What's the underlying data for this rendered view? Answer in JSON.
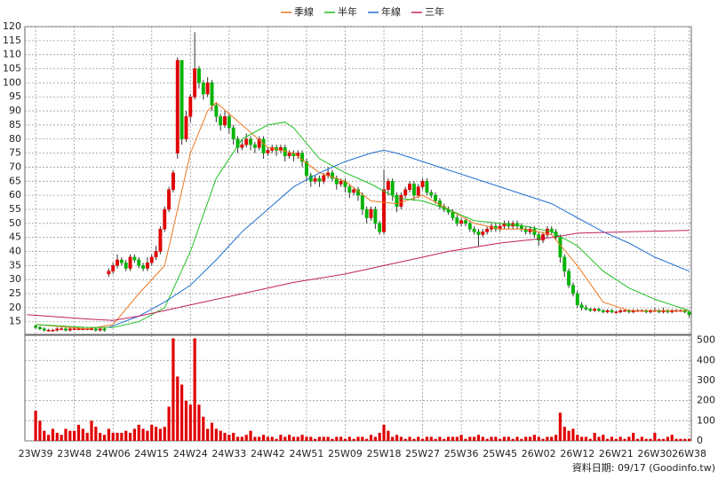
{
  "chart_data": {
    "type": "candlestick",
    "xlim": [
      -2.5,
      152.5
    ],
    "xticks": [
      {
        "value": 0,
        "label": "23W39"
      },
      {
        "value": 9,
        "label": "23W48"
      },
      {
        "value": 18,
        "label": "24W06"
      },
      {
        "value": 27,
        "label": "24W15"
      },
      {
        "value": 36,
        "label": "24W24"
      },
      {
        "value": 45,
        "label": "24W33"
      },
      {
        "value": 54,
        "label": "24W42"
      },
      {
        "value": 63,
        "label": "24W51"
      },
      {
        "value": 72,
        "label": "25W09"
      },
      {
        "value": 81,
        "label": "25W18"
      },
      {
        "value": 90,
        "label": "25W27"
      },
      {
        "value": 99,
        "label": "25W36"
      },
      {
        "value": 108,
        "label": "25W45"
      },
      {
        "value": 117,
        "label": "26W02"
      },
      {
        "value": 126,
        "label": "26W12"
      },
      {
        "value": 135,
        "label": "26W21"
      },
      {
        "value": 144,
        "label": "26W30"
      },
      {
        "value": 152,
        "label": "26W38"
      }
    ],
    "ylim": [
      10.5,
      120
    ],
    "yticks": [
      15,
      20,
      25,
      30,
      35,
      40,
      45,
      50,
      55,
      60,
      65,
      70,
      75,
      80,
      85,
      90,
      95,
      100,
      105,
      110,
      115,
      120
    ],
    "grid": true,
    "up_color": "#e00000",
    "down_color": "#00b400",
    "candles": [
      [
        13.5,
        14,
        12.5,
        13
      ],
      [
        13,
        13.5,
        12,
        12.5
      ],
      [
        12.5,
        13,
        11.5,
        12
      ],
      [
        12,
        12.5,
        11.5,
        12
      ],
      [
        12,
        12.5,
        11.5,
        12
      ],
      [
        12,
        13,
        11.5,
        12.5
      ],
      [
        12.5,
        13,
        12,
        12.5
      ],
      [
        12.5,
        13,
        11.5,
        12
      ],
      [
        12,
        13,
        11.5,
        12.5
      ],
      [
        12.5,
        13,
        12,
        12.5
      ],
      [
        12.5,
        13,
        12,
        12.5
      ],
      [
        12.5,
        13,
        12,
        12.5
      ],
      [
        12.5,
        13,
        12,
        12.5
      ],
      [
        12.5,
        13,
        12,
        12.5
      ],
      [
        12.5,
        13,
        11.5,
        12
      ],
      [
        12,
        13,
        11.5,
        12.5
      ],
      [
        12.5,
        13,
        11.5,
        12
      ],
      [
        32,
        34,
        31,
        33
      ],
      [
        33,
        36,
        32,
        35
      ],
      [
        35,
        39,
        34,
        37
      ],
      [
        37,
        38,
        35,
        36
      ],
      [
        36,
        37,
        33,
        34
      ],
      [
        34,
        39,
        33,
        38
      ],
      [
        38,
        39,
        36,
        37
      ],
      [
        37,
        38,
        34,
        35
      ],
      [
        35,
        36,
        33,
        34
      ],
      [
        34,
        38,
        33,
        36
      ],
      [
        36,
        39,
        35,
        38
      ],
      [
        38,
        42,
        37,
        40
      ],
      [
        40,
        49,
        39,
        48
      ],
      [
        48,
        56,
        47,
        55
      ],
      [
        55,
        63,
        54,
        62
      ],
      [
        62,
        69,
        61,
        68
      ],
      [
        75,
        109,
        73,
        108
      ],
      [
        108,
        108,
        78,
        80
      ],
      [
        80,
        90,
        79,
        88
      ],
      [
        88,
        96,
        86,
        95
      ],
      [
        95,
        118,
        94,
        105
      ],
      [
        105,
        106,
        98,
        100
      ],
      [
        100,
        101,
        94,
        96
      ],
      [
        96,
        102,
        95,
        100
      ],
      [
        100,
        101,
        90,
        92
      ],
      [
        92,
        93,
        86,
        88
      ],
      [
        88,
        89,
        83,
        85
      ],
      [
        85,
        90,
        84,
        88
      ],
      [
        88,
        89,
        82,
        84
      ],
      [
        84,
        85,
        78,
        80
      ],
      [
        80,
        81,
        75,
        77
      ],
      [
        77,
        80,
        76,
        78
      ],
      [
        78,
        82,
        77,
        80
      ],
      [
        80,
        81,
        76,
        78
      ],
      [
        78,
        79,
        75,
        77
      ],
      [
        77,
        81,
        76,
        80
      ],
      [
        80,
        81,
        73,
        75
      ],
      [
        75,
        77,
        74,
        76
      ],
      [
        76,
        78,
        75,
        77
      ],
      [
        77,
        78,
        74,
        76
      ],
      [
        76,
        78,
        75,
        77
      ],
      [
        77,
        78,
        72,
        74
      ],
      [
        74,
        76,
        73,
        75
      ],
      [
        75,
        76,
        72,
        74
      ],
      [
        74,
        76,
        73,
        75
      ],
      [
        75,
        76,
        70,
        72
      ],
      [
        72,
        73,
        65,
        67
      ],
      [
        67,
        68,
        63,
        65
      ],
      [
        65,
        67,
        64,
        66
      ],
      [
        66,
        67,
        63,
        65
      ],
      [
        65,
        68,
        64,
        67
      ],
      [
        67,
        70,
        66,
        68
      ],
      [
        68,
        69,
        65,
        66
      ],
      [
        66,
        67,
        62,
        64
      ],
      [
        64,
        66,
        63,
        65
      ],
      [
        65,
        66,
        61,
        63
      ],
      [
        63,
        64,
        59,
        61
      ],
      [
        61,
        63,
        60,
        62
      ],
      [
        62,
        63,
        58,
        60
      ],
      [
        60,
        61,
        53,
        55
      ],
      [
        55,
        56,
        50,
        52
      ],
      [
        52,
        56,
        51,
        55
      ],
      [
        55,
        56,
        48,
        50
      ],
      [
        50,
        51,
        46,
        47
      ],
      [
        47,
        69,
        46,
        62
      ],
      [
        62,
        66,
        60,
        65
      ],
      [
        65,
        66,
        58,
        60
      ],
      [
        60,
        61,
        54,
        56
      ],
      [
        56,
        61,
        55,
        60
      ],
      [
        60,
        63,
        59,
        62
      ],
      [
        62,
        65,
        61,
        64
      ],
      [
        64,
        65,
        58,
        60
      ],
      [
        60,
        64,
        59,
        63
      ],
      [
        63,
        66,
        62,
        65
      ],
      [
        65,
        66,
        60,
        61
      ],
      [
        61,
        62,
        59,
        60
      ],
      [
        60,
        61,
        57,
        58
      ],
      [
        58,
        59,
        55,
        56
      ],
      [
        56,
        57,
        54,
        55
      ],
      [
        55,
        56,
        53,
        54
      ],
      [
        54,
        55,
        51,
        52
      ],
      [
        52,
        53,
        49,
        50
      ],
      [
        50,
        52,
        49,
        51
      ],
      [
        51,
        52,
        49,
        50
      ],
      [
        50,
        51,
        47,
        48
      ],
      [
        48,
        49,
        46,
        47
      ],
      [
        47,
        48,
        42,
        46
      ],
      [
        46,
        48,
        45,
        47
      ],
      [
        47,
        49,
        46,
        48
      ],
      [
        48,
        50,
        47,
        49
      ],
      [
        49,
        50,
        47,
        48
      ],
      [
        48,
        50,
        47,
        49
      ],
      [
        49,
        51,
        48,
        50
      ],
      [
        50,
        51,
        48,
        49
      ],
      [
        49,
        51,
        48,
        50
      ],
      [
        50,
        51,
        48,
        49
      ],
      [
        49,
        50,
        47,
        48
      ],
      [
        48,
        49,
        46,
        47
      ],
      [
        47,
        49,
        46,
        48
      ],
      [
        48,
        49,
        45,
        46
      ],
      [
        46,
        47,
        42,
        44
      ],
      [
        44,
        47,
        43,
        46
      ],
      [
        46,
        49,
        45,
        48
      ],
      [
        48,
        49,
        46,
        47
      ],
      [
        47,
        48,
        44,
        45
      ],
      [
        45,
        46,
        36,
        38
      ],
      [
        38,
        39,
        31,
        33
      ],
      [
        33,
        34,
        27,
        28
      ],
      [
        28,
        29,
        24,
        25
      ],
      [
        25,
        26,
        20,
        21
      ],
      [
        21,
        22,
        19,
        20
      ],
      [
        20,
        21,
        19,
        19.5
      ],
      [
        19.5,
        20,
        18.5,
        19
      ],
      [
        19,
        20,
        18.5,
        19.5
      ],
      [
        19.5,
        20,
        18.5,
        19
      ],
      [
        19,
        19.5,
        18,
        18.5
      ],
      [
        18.5,
        19.5,
        18,
        19
      ],
      [
        19,
        19.5,
        18,
        18.5
      ],
      [
        18.5,
        19,
        18,
        18.5
      ],
      [
        18.5,
        19.5,
        18,
        19
      ],
      [
        19,
        19.5,
        18.5,
        19
      ],
      [
        19,
        19.5,
        18,
        18.5
      ],
      [
        18.5,
        19.5,
        18,
        19
      ],
      [
        19,
        19.5,
        18.5,
        19
      ],
      [
        19,
        19.5,
        18.5,
        19
      ],
      [
        19,
        19.5,
        18,
        18.5
      ],
      [
        18.5,
        19.5,
        18,
        19
      ],
      [
        19,
        20,
        18.5,
        19
      ],
      [
        19,
        19.5,
        18,
        18.5
      ],
      [
        18.5,
        20,
        18,
        19
      ],
      [
        19,
        19.5,
        18,
        18.5
      ],
      [
        18.5,
        19.5,
        18,
        19
      ],
      [
        19,
        19.5,
        18.5,
        19
      ],
      [
        19,
        19.5,
        18.5,
        19
      ],
      [
        19,
        19.5,
        18,
        18.5
      ],
      [
        18.5,
        19,
        16.5,
        17.5
      ]
    ],
    "series": [
      {
        "name": "季線",
        "color": "#f07820",
        "x": [
          0,
          12,
          18,
          24,
          30,
          36,
          40,
          42,
          48,
          54,
          60,
          66,
          72,
          78,
          84,
          90,
          96,
          102,
          108,
          114,
          120,
          126,
          132,
          138,
          144,
          152
        ],
        "values": [
          14,
          12.5,
          14,
          25,
          35,
          75,
          90,
          93,
          85,
          77,
          75,
          68,
          65,
          58,
          57,
          60,
          55,
          50,
          48,
          48,
          46,
          35,
          22,
          19,
          19,
          19
        ]
      },
      {
        "name": "半年",
        "color": "#20c020",
        "x": [
          0,
          12,
          18,
          24,
          30,
          36,
          42,
          48,
          54,
          58,
          60,
          66,
          72,
          78,
          84,
          90,
          96,
          102,
          108,
          114,
          120,
          126,
          132,
          138,
          144,
          152
        ],
        "values": [
          14,
          13,
          13,
          15,
          20,
          40,
          66,
          80,
          85,
          86,
          84,
          73,
          68,
          64,
          59,
          58,
          55,
          51,
          50,
          49,
          47,
          42,
          33,
          27,
          23,
          19
        ]
      },
      {
        "name": "年線",
        "color": "#2070d0",
        "x": [
          17,
          24,
          30,
          36,
          42,
          48,
          54,
          60,
          66,
          72,
          78,
          81,
          84,
          90,
          96,
          102,
          108,
          114,
          120,
          126,
          132,
          138,
          144,
          152
        ],
        "values": [
          13,
          17,
          22,
          28,
          37,
          47,
          55,
          63,
          68,
          72,
          75,
          76,
          75,
          72,
          69,
          66,
          63,
          60,
          57,
          52,
          47,
          43,
          38,
          33
        ]
      },
      {
        "name": "三年",
        "color": "#c02060",
        "x": [
          -2,
          12,
          18,
          24,
          30,
          36,
          48,
          60,
          72,
          84,
          96,
          108,
          120,
          126,
          138,
          152
        ],
        "values": [
          17.5,
          16,
          15.5,
          17,
          19,
          21,
          25,
          29,
          32,
          36,
          40,
          43,
          45,
          46.5,
          47,
          47.5
        ]
      }
    ],
    "volume": {
      "color": "#e00000",
      "ylim": [
        0,
        525
      ],
      "yticks": [
        0,
        100,
        200,
        300,
        400,
        500
      ],
      "values": [
        150,
        100,
        50,
        30,
        60,
        40,
        30,
        60,
        50,
        50,
        80,
        60,
        40,
        100,
        70,
        40,
        30,
        60,
        40,
        40,
        40,
        50,
        40,
        60,
        80,
        60,
        50,
        80,
        70,
        60,
        70,
        170,
        510,
        320,
        280,
        200,
        180,
        510,
        180,
        120,
        60,
        90,
        60,
        50,
        40,
        30,
        40,
        20,
        20,
        30,
        50,
        20,
        20,
        30,
        20,
        20,
        10,
        30,
        20,
        30,
        20,
        20,
        30,
        20,
        20,
        10,
        20,
        20,
        20,
        10,
        20,
        20,
        10,
        20,
        10,
        20,
        20,
        10,
        30,
        20,
        40,
        80,
        50,
        20,
        30,
        20,
        10,
        20,
        10,
        20,
        10,
        20,
        20,
        10,
        20,
        10,
        20,
        20,
        20,
        30,
        10,
        20,
        20,
        30,
        20,
        10,
        20,
        20,
        10,
        20,
        20,
        10,
        20,
        10,
        20,
        20,
        30,
        20,
        10,
        20,
        20,
        30,
        140,
        70,
        50,
        60,
        30,
        20,
        20,
        10,
        40,
        20,
        30,
        10,
        20,
        10,
        20,
        10,
        20,
        40,
        10,
        20,
        10,
        10,
        40,
        10,
        10,
        20,
        30,
        10,
        10,
        10,
        10
      ]
    },
    "footer": "資料日期: 09/17 (Goodinfo.tw)"
  }
}
